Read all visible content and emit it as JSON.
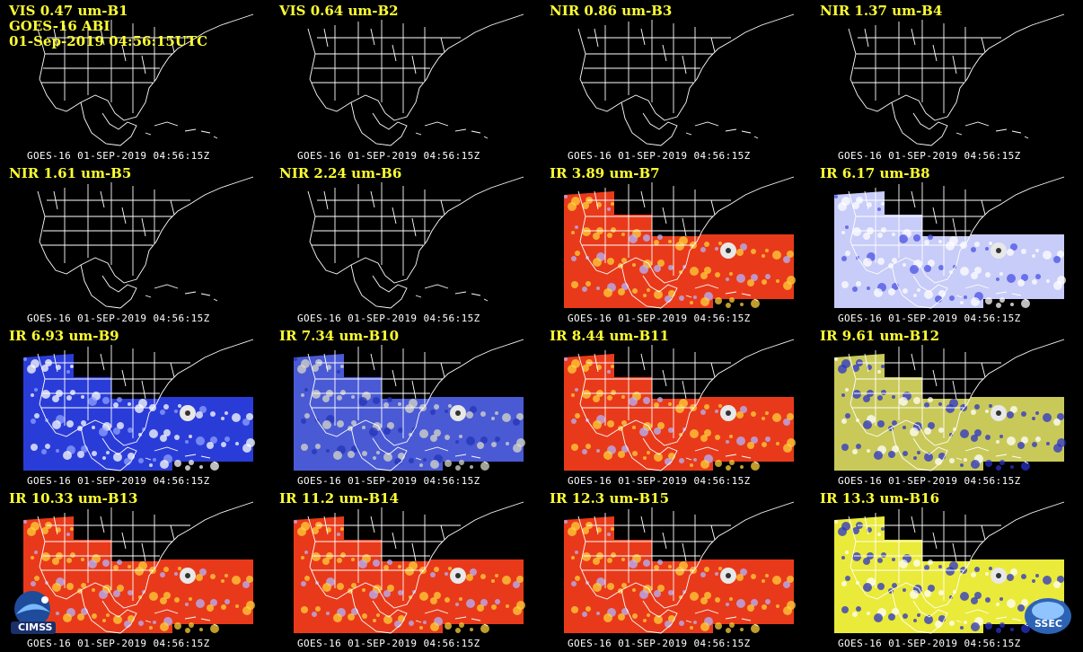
{
  "header": {
    "satellite": "GOES-16 ABI",
    "datetime": "01-Sep-2019 04:56:15UTC"
  },
  "footer_text": "GOES-16 01-SEP-2019 04:56:15Z",
  "panels": [
    {
      "label": "VIS 0.47 um-B1",
      "kind": "dark"
    },
    {
      "label": "VIS 0.64 um-B2",
      "kind": "dark"
    },
    {
      "label": "NIR 0.86 um-B3",
      "kind": "dark"
    },
    {
      "label": "NIR 1.37 um-B4",
      "kind": "dark"
    },
    {
      "label": "NIR 1.61 um-B5",
      "kind": "dark"
    },
    {
      "label": "NIR 2.24 um-B6",
      "kind": "dark"
    },
    {
      "label": "IR 3.89 um-B7",
      "kind": "warm"
    },
    {
      "label": "IR 6.17 um-B8",
      "kind": "wv-light"
    },
    {
      "label": "IR 6.93 um-B9",
      "kind": "wv-blue"
    },
    {
      "label": "IR 7.34 um-B10",
      "kind": "wv-mid"
    },
    {
      "label": "IR 8.44 um-B11",
      "kind": "warm"
    },
    {
      "label": "IR 9.61 um-B12",
      "kind": "ozone"
    },
    {
      "label": "IR 10.33 um-B13",
      "kind": "warm"
    },
    {
      "label": "IR 11.2 um-B14",
      "kind": "warm"
    },
    {
      "label": "IR 12.3 um-B15",
      "kind": "warm"
    },
    {
      "label": "IR 13.3 um-B16",
      "kind": "co2"
    }
  ],
  "logos": {
    "left": "CIMSS",
    "right": "SSEC"
  },
  "colors": {
    "label": "#ffff33",
    "map_lines": "#ffffff",
    "background": "#000000"
  }
}
